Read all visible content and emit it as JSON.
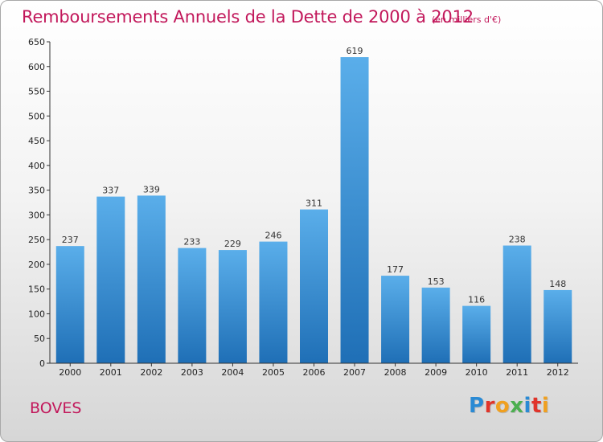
{
  "header": {
    "title": "Remboursements Annuels de la Dette de 2000 à 2012",
    "unit": "(en milliers d'€)"
  },
  "footer": {
    "town": "BOVES",
    "logo_letters": [
      "P",
      "r",
      "o",
      "x",
      "i",
      "t",
      "i"
    ]
  },
  "colors": {
    "title": "#c2185b",
    "bar_light": "#5aaeea",
    "bar_dark": "#1f6fb6",
    "logo": [
      "#2a8ad4",
      "#e0342a",
      "#f0a020",
      "#4caf50",
      "#2a8ad4",
      "#e0342a",
      "#f0a020"
    ]
  },
  "chart_data": {
    "type": "bar",
    "title": "Remboursements Annuels de la Dette de 2000 à 2012",
    "categories": [
      "2000",
      "2001",
      "2002",
      "2003",
      "2004",
      "2005",
      "2006",
      "2007",
      "2008",
      "2009",
      "2010",
      "2011",
      "2012"
    ],
    "values": [
      237,
      337,
      339,
      233,
      229,
      246,
      311,
      619,
      177,
      153,
      116,
      238,
      148
    ],
    "ylim": [
      0,
      650
    ],
    "yticks": [
      0,
      50,
      100,
      150,
      200,
      250,
      300,
      350,
      400,
      450,
      500,
      550,
      600,
      650
    ],
    "grid": false,
    "xlabel": "",
    "ylabel": ""
  }
}
